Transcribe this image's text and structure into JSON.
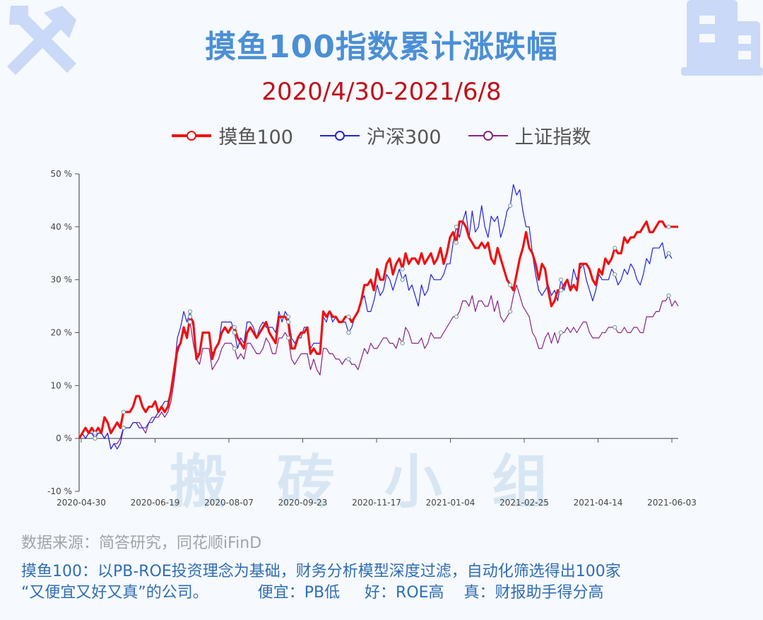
{
  "header": {
    "title": "摸鱼100指数累计涨跌幅",
    "subtitle": "2020/4/30-2021/6/8"
  },
  "icons": {
    "left": "wrench-screwdriver-icon",
    "right": "building-icon"
  },
  "watermark": "搬砖小组",
  "footer": {
    "source": "数据来源：简答研究，同花顺iFinD",
    "note1": "摸鱼100：以PB-ROE投资理念为基础，财务分析模型深度过滤，自动化筛选得出100家",
    "note2": "“又便宜又好又真”的公司。          便宜：PB低     好：ROE高    真：财报助手得分高"
  },
  "chart_data": {
    "type": "line",
    "title": "摸鱼100指数累计涨跌幅",
    "subtitle": "2020/4/30-2021/6/8",
    "xlabel": "",
    "ylabel": "",
    "ylim": [
      -10,
      50
    ],
    "yticks": [
      -10,
      0,
      10,
      20,
      30,
      40,
      50
    ],
    "ytick_labels": [
      "-10 %",
      "0 %",
      "10 %",
      "20 %",
      "30 %",
      "40 %",
      "50 %"
    ],
    "xtick_labels": [
      "2020-04-30",
      "2020-06-19",
      "2020-08-07",
      "2020-09-23",
      "2020-11-17",
      "2021-01-04",
      "2021-02-25",
      "2021-04-14",
      "2021-06-03"
    ],
    "grid": false,
    "legend_position": "top-center",
    "colors": {
      "moyu": "#ee1111",
      "hs300": "#2222dd",
      "sz": "#882288"
    },
    "series": [
      {
        "name": "摸鱼100",
        "key": "moyu",
        "values": [
          0,
          1,
          2,
          1,
          2,
          1,
          2,
          1,
          4,
          3,
          1,
          2,
          3,
          2,
          5,
          5,
          5,
          6,
          8,
          8,
          6,
          5,
          6,
          6,
          7,
          5,
          6,
          5,
          6,
          9,
          13,
          17,
          18,
          21,
          19,
          23,
          22,
          15,
          16,
          20,
          20,
          20,
          15,
          17,
          18,
          20,
          21,
          20,
          21,
          21,
          19,
          18,
          17,
          20,
          21,
          20,
          19,
          20,
          21,
          22,
          20,
          19,
          18,
          23,
          23,
          23,
          22,
          17,
          17,
          19,
          20,
          20,
          21,
          16,
          17,
          16,
          16,
          24,
          23,
          24,
          23,
          23,
          22,
          22,
          23,
          23,
          22,
          23,
          24,
          26,
          29,
          29,
          30,
          28,
          32,
          30,
          30,
          33,
          34,
          31,
          33,
          34,
          32,
          35,
          33,
          34,
          34,
          33,
          35,
          33,
          34,
          35,
          33,
          34,
          36,
          33,
          35,
          38,
          39,
          37,
          41,
          41,
          40,
          38,
          37,
          36,
          36,
          37,
          36,
          37,
          34,
          33,
          36,
          34,
          32,
          30,
          29,
          28,
          31,
          34,
          36,
          39,
          36,
          35,
          33,
          30,
          33,
          32,
          28,
          25,
          26,
          28,
          28,
          29,
          30,
          28,
          29,
          28,
          33,
          33,
          33,
          32,
          30,
          29,
          32,
          31,
          34,
          33,
          34,
          36,
          35,
          35,
          38,
          37,
          38,
          38,
          39,
          39,
          40,
          41,
          39,
          39,
          40,
          41,
          41,
          40,
          40,
          40,
          40,
          40
        ],
        "markers": [
          5,
          14,
          35,
          49,
          66,
          85,
          102,
          119,
          136,
          152,
          169,
          186
        ]
      },
      {
        "name": "沪深300",
        "key": "hs300",
        "values": [
          0,
          1,
          0,
          1,
          1,
          0,
          1,
          1,
          0,
          1,
          -2,
          -1,
          -2,
          -1,
          2,
          2,
          2,
          3,
          3,
          2,
          2,
          2,
          3,
          3,
          4,
          5,
          6,
          7,
          7,
          9,
          13,
          19,
          21,
          24,
          22,
          24,
          21,
          16,
          16,
          20,
          20,
          20,
          16,
          17,
          18,
          22,
          22,
          22,
          22,
          20,
          17,
          19,
          18,
          22,
          22,
          21,
          19,
          21,
          22,
          21,
          21,
          21,
          20,
          24,
          22,
          24,
          23,
          19,
          18,
          19,
          19,
          21,
          21,
          17,
          18,
          18,
          18,
          23,
          22,
          24,
          22,
          23,
          22,
          22,
          22,
          20,
          21,
          23,
          24,
          26,
          27,
          24,
          24,
          26,
          29,
          27,
          28,
          31,
          30,
          28,
          30,
          32,
          30,
          31,
          28,
          29,
          27,
          25,
          29,
          27,
          28,
          31,
          30,
          30,
          30,
          31,
          33,
          33,
          37,
          40,
          38,
          41,
          43,
          38,
          43,
          39,
          40,
          44,
          40,
          38,
          42,
          41,
          42,
          38,
          40,
          43,
          44,
          48,
          46,
          47,
          43,
          40,
          40,
          35,
          31,
          28,
          27,
          28,
          29,
          27,
          28,
          26,
          30,
          28,
          30,
          28,
          32,
          30,
          32,
          33,
          30,
          28,
          26,
          28,
          31,
          30,
          30,
          30,
          32,
          31,
          29,
          30,
          32,
          31,
          33,
          32,
          30,
          29,
          31,
          34,
          33,
          36,
          36,
          36,
          37,
          34,
          35,
          34
        ],
        "markers": [
          5,
          14,
          35,
          49,
          66,
          85,
          102,
          119,
          136,
          152,
          169,
          186
        ]
      },
      {
        "name": "上证指数",
        "key": "sz",
        "values": [
          0,
          1,
          0,
          1,
          1,
          0,
          1,
          1,
          0,
          1,
          -2,
          -1,
          -1,
          0,
          2,
          2,
          2,
          3,
          3,
          3,
          2,
          1,
          3,
          4,
          4,
          4,
          5,
          4,
          5,
          7,
          11,
          16,
          18,
          20,
          20,
          22,
          18,
          15,
          14,
          17,
          17,
          17,
          13,
          14,
          15,
          17,
          18,
          18,
          18,
          17,
          15,
          16,
          15,
          18,
          18,
          17,
          16,
          16,
          17,
          19,
          18,
          16,
          16,
          19,
          19,
          20,
          19,
          15,
          14,
          15,
          16,
          16,
          16,
          13,
          15,
          13,
          12,
          17,
          17,
          16,
          16,
          15,
          15,
          14,
          15,
          15,
          14,
          14,
          13,
          15,
          17,
          16,
          18,
          17,
          17,
          18,
          19,
          19,
          18,
          18,
          17,
          19,
          18,
          21,
          20,
          18,
          18,
          18,
          19,
          17,
          18,
          20,
          19,
          19,
          19,
          20,
          21,
          22,
          23,
          23,
          24,
          26,
          26,
          25,
          27,
          24,
          26,
          26,
          25,
          25,
          27,
          24,
          26,
          23,
          22,
          23,
          24,
          27,
          29,
          27,
          25,
          24,
          23,
          20,
          19,
          17,
          17,
          19,
          20,
          18,
          20,
          18,
          20,
          20,
          21,
          20,
          21,
          20,
          21,
          22,
          22,
          20,
          19,
          19,
          19,
          20,
          20,
          21,
          21,
          21,
          20,
          20,
          21,
          20,
          20,
          21,
          21,
          20,
          20,
          23,
          23,
          23,
          24,
          24,
          26,
          26,
          27,
          25,
          26,
          25
        ],
        "markers": [
          5,
          14,
          35,
          49,
          66,
          85,
          102,
          119,
          136,
          152,
          169,
          186
        ]
      }
    ]
  }
}
